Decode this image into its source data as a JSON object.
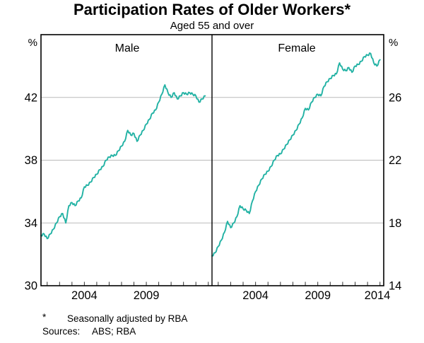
{
  "title": "Participation Rates of Older Workers*",
  "subtitle": "Aged 55 and over",
  "axes": {
    "left_unit": "%",
    "right_unit": "%"
  },
  "footnote": {
    "marker": "*",
    "text": "Seasonally adjusted by RBA"
  },
  "sources": {
    "label": "Sources:",
    "text": "ABS; RBA"
  },
  "chart_data": {
    "type": "line",
    "title": "Participation Rates of Older Workers*",
    "subtitle": "Aged 55 and over",
    "unit": "%",
    "line_color": "#22b2a4",
    "grid_color": "#bababa",
    "frame_color": "#000000",
    "tick_color": "#333333",
    "grid_on": true,
    "legend": "none (panel labels only)",
    "xlim": [
      2000.5,
      2014.3
    ],
    "x_tick_interval_years": 1,
    "panels": [
      {
        "label": "Male",
        "axis_side": "left",
        "ylabel": "%",
        "ylim": [
          30,
          46
        ],
        "yticks": [
          30,
          34,
          38,
          42
        ],
        "x_ticklabels": [
          "2004",
          "2009"
        ],
        "series": {
          "name": "Male participation rate, aged 55 and over (%)",
          "x": [
            2000.5,
            2000.75,
            2001,
            2001.25,
            2001.5,
            2001.75,
            2002,
            2002.25,
            2002.5,
            2002.75,
            2003,
            2003.25,
            2003.5,
            2003.75,
            2004,
            2004.25,
            2004.5,
            2004.75,
            2005,
            2005.25,
            2005.5,
            2005.75,
            2006,
            2006.25,
            2006.5,
            2006.75,
            2007,
            2007.25,
            2007.5,
            2007.75,
            2008,
            2008.25,
            2008.5,
            2008.75,
            2009,
            2009.25,
            2009.5,
            2009.75,
            2010,
            2010.25,
            2010.5,
            2010.75,
            2011,
            2011.25,
            2011.5,
            2011.75,
            2012,
            2012.25,
            2012.5,
            2012.75,
            2013,
            2013.25,
            2013.5,
            2013.75
          ],
          "values": [
            33.2,
            33.3,
            33.0,
            33.3,
            33.6,
            34.0,
            34.4,
            34.6,
            34.0,
            35.1,
            35.3,
            35.1,
            35.4,
            35.6,
            36.3,
            36.4,
            36.6,
            36.9,
            37.1,
            37.4,
            37.6,
            38.0,
            38.2,
            38.3,
            38.3,
            38.6,
            38.9,
            39.2,
            39.9,
            39.6,
            39.7,
            39.2,
            39.6,
            39.9,
            40.3,
            40.6,
            41.0,
            41.2,
            41.7,
            42.2,
            42.8,
            42.3,
            42.0,
            42.3,
            41.9,
            42.1,
            42.3,
            42.2,
            42.3,
            42.2,
            42.1,
            41.7,
            41.9,
            42.1
          ]
        }
      },
      {
        "label": "Female",
        "axis_side": "right",
        "ylabel": "%",
        "ylim": [
          14,
          30
        ],
        "yticks": [
          14,
          18,
          22,
          26
        ],
        "x_ticklabels": [
          "2004",
          "2009",
          "2014"
        ],
        "series": {
          "name": "Female participation rate, aged 55 and over (%)",
          "x": [
            2000.5,
            2000.75,
            2001,
            2001.25,
            2001.5,
            2001.75,
            2002,
            2002.25,
            2002.5,
            2002.75,
            2003,
            2003.25,
            2003.5,
            2003.75,
            2004,
            2004.25,
            2004.5,
            2004.75,
            2005,
            2005.25,
            2005.5,
            2005.75,
            2006,
            2006.25,
            2006.5,
            2006.75,
            2007,
            2007.25,
            2007.5,
            2007.75,
            2008,
            2008.25,
            2008.5,
            2008.75,
            2009,
            2009.25,
            2009.5,
            2009.75,
            2010,
            2010.25,
            2010.5,
            2010.75,
            2011,
            2011.25,
            2011.5,
            2011.75,
            2012,
            2012.25,
            2012.5,
            2012.75,
            2013,
            2013.25,
            2013.5,
            2013.75,
            2014
          ],
          "values": [
            15.9,
            16.1,
            16.5,
            16.9,
            17.4,
            18.1,
            17.7,
            18.0,
            18.4,
            19.1,
            18.9,
            18.8,
            18.6,
            19.4,
            20.0,
            20.4,
            20.8,
            21.1,
            21.3,
            21.6,
            22.0,
            22.3,
            22.4,
            22.7,
            23.0,
            23.3,
            23.6,
            23.9,
            24.3,
            24.7,
            25.3,
            25.2,
            25.7,
            26.0,
            26.2,
            26.1,
            26.7,
            27.0,
            27.2,
            27.4,
            27.5,
            28.2,
            27.8,
            27.7,
            27.9,
            27.6,
            28.0,
            28.1,
            28.3,
            28.6,
            28.7,
            28.8,
            28.2,
            28.0,
            28.4
          ]
        }
      }
    ]
  }
}
